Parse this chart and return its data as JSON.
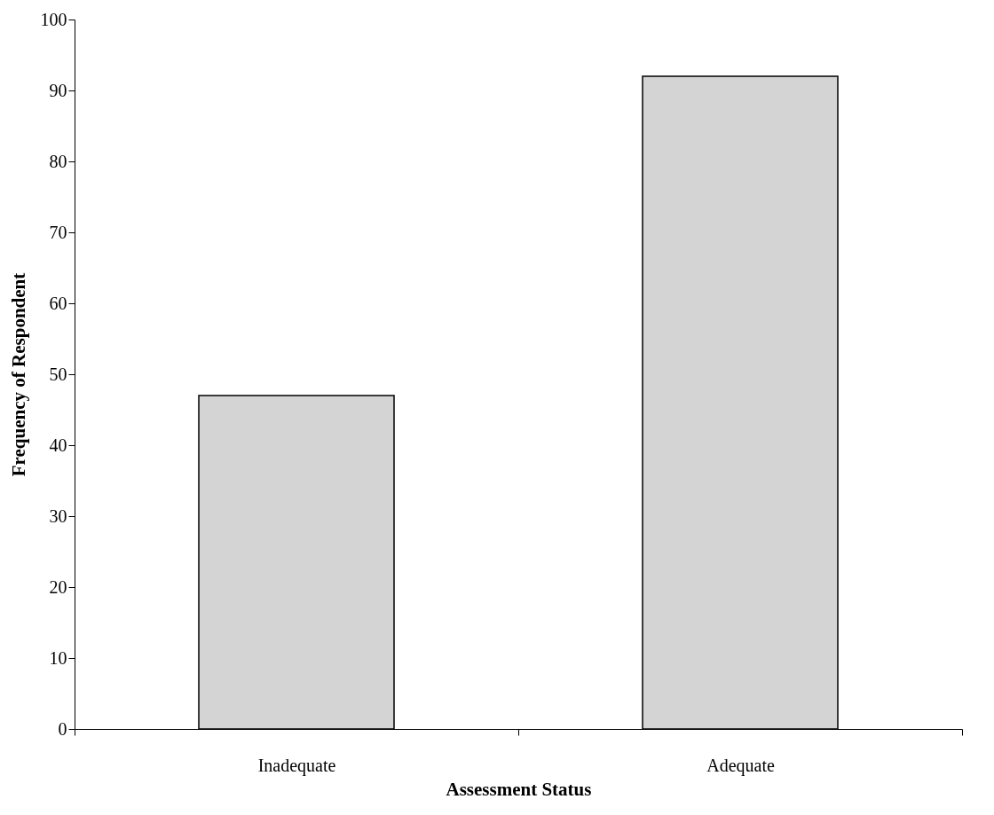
{
  "chart_data": {
    "type": "bar",
    "xlabel": "Assessment Status",
    "ylabel": "Frequency of Respondent",
    "categories": [
      "Inadequate",
      "Adequate"
    ],
    "values": [
      47,
      92
    ],
    "color": "#d4d4d4",
    "ylim": [
      0,
      100
    ],
    "yticks": [
      0,
      10,
      20,
      30,
      40,
      50,
      60,
      70,
      80,
      90,
      100
    ],
    "grid": false
  }
}
